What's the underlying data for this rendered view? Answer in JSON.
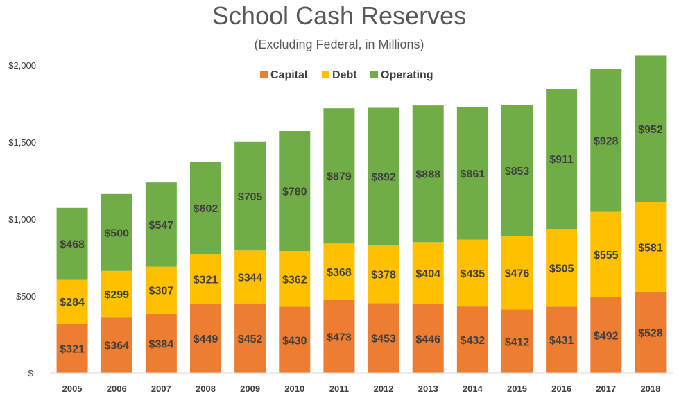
{
  "chart_data": {
    "type": "bar",
    "stacked": true,
    "title": "School Cash Reserves",
    "subtitle": "(Excluding Federal, in Millions)",
    "categories": [
      "2005",
      "2006",
      "2007",
      "2008",
      "2009",
      "2010",
      "2011",
      "2012",
      "2013",
      "2014",
      "2015",
      "2016",
      "2017",
      "2018"
    ],
    "series": [
      {
        "name": "Capital",
        "color": "#ED7D31",
        "values": [
          321,
          364,
          384,
          449,
          452,
          430,
          473,
          453,
          446,
          432,
          412,
          431,
          492,
          528
        ],
        "labels": [
          "$321",
          "$364",
          "$384",
          "$449",
          "$452",
          "$430",
          "$473",
          "$453",
          "$446",
          "$432",
          "$412",
          "$431",
          "$492",
          "$528"
        ]
      },
      {
        "name": "Debt",
        "color": "#FFC000",
        "values": [
          284,
          299,
          307,
          321,
          344,
          362,
          368,
          378,
          404,
          435,
          476,
          505,
          555,
          581
        ],
        "labels": [
          "$284",
          "$299",
          "$307",
          "$321",
          "$344",
          "$362",
          "$368",
          "$378",
          "$404",
          "$435",
          "$476",
          "$505",
          "$555",
          "$581"
        ]
      },
      {
        "name": "Operating",
        "color": "#70AD47",
        "values": [
          468,
          500,
          547,
          602,
          705,
          780,
          879,
          892,
          888,
          861,
          853,
          911,
          928,
          952
        ],
        "labels": [
          "$468",
          "$500",
          "$547",
          "$602",
          "$705",
          "$780",
          "$879",
          "$892",
          "$888",
          "$861",
          "$853",
          "$911",
          "$928",
          "$952"
        ]
      }
    ],
    "ylim": [
      0,
      2000
    ],
    "yticks": [
      0,
      500,
      1000,
      1500,
      2000
    ],
    "ytick_labels": [
      "$-",
      "$500",
      "$1,000",
      "$1,500",
      "$2,000"
    ],
    "grid": false,
    "legend_position": "top-center"
  }
}
